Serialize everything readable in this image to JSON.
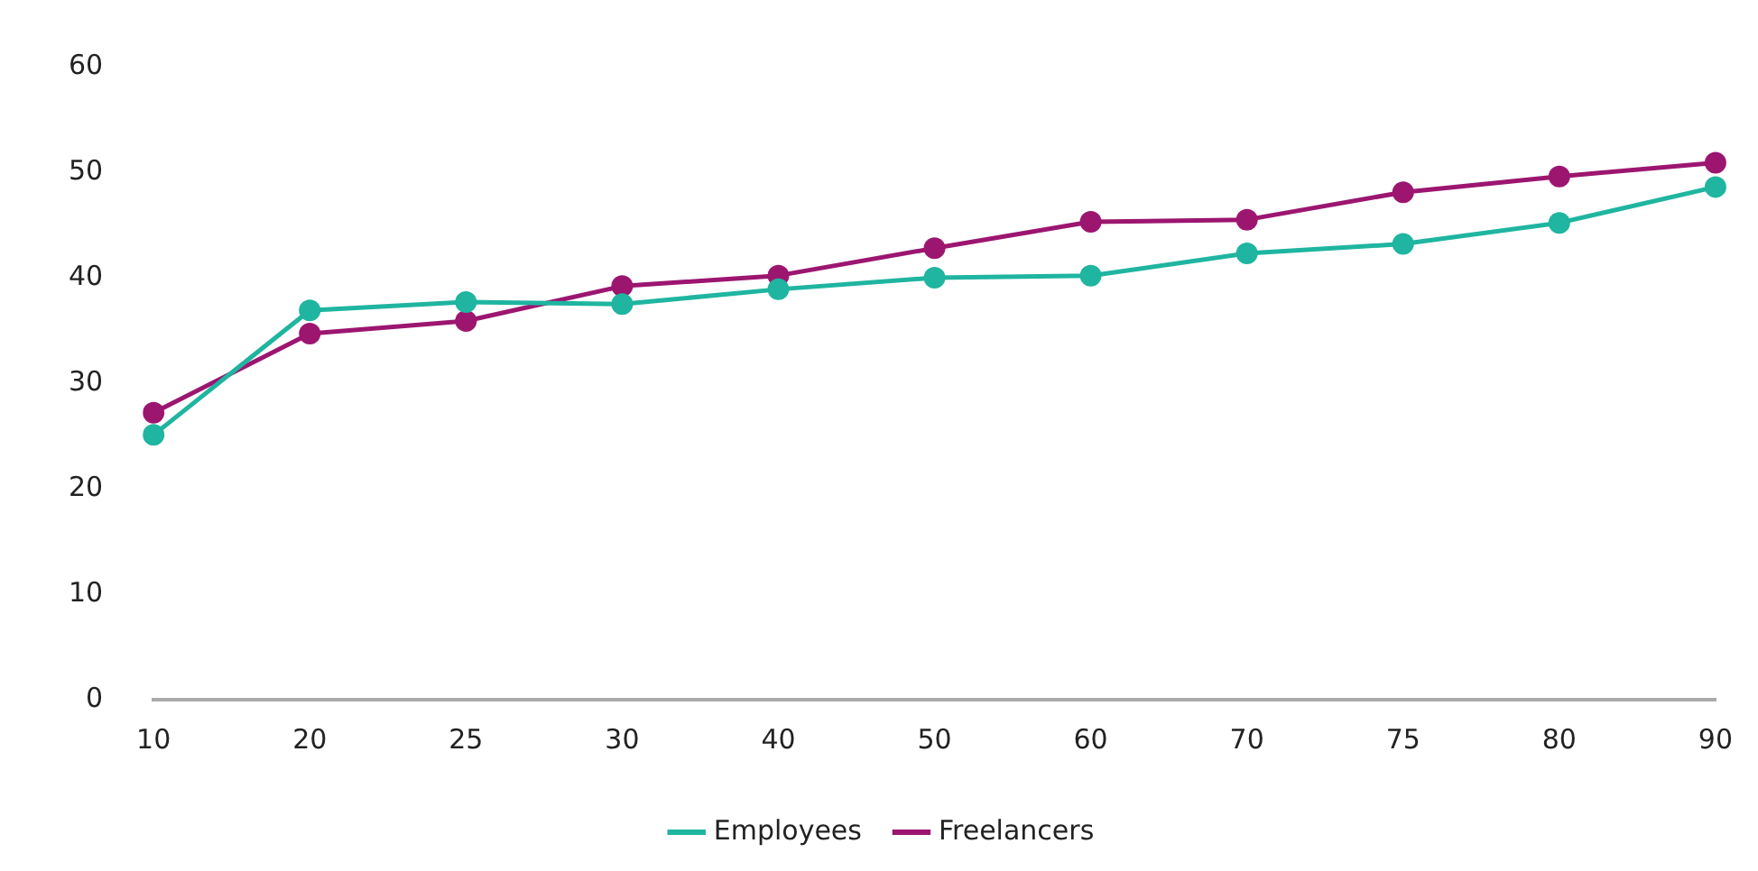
{
  "chart_data": {
    "type": "line",
    "categories": [
      "10",
      "20",
      "25",
      "30",
      "40",
      "50",
      "60",
      "70",
      "75",
      "80",
      "90"
    ],
    "series": [
      {
        "name": "Employees",
        "color": "#1fb5a0",
        "values": [
          25.1,
          36.9,
          37.7,
          37.5,
          38.9,
          40.0,
          40.2,
          42.3,
          43.2,
          45.2,
          48.6
        ]
      },
      {
        "name": "Freelancers",
        "color": "#9c1670",
        "values": [
          27.2,
          34.7,
          35.9,
          39.2,
          40.2,
          42.8,
          45.3,
          45.5,
          48.1,
          49.6,
          50.9
        ]
      }
    ],
    "ylim": [
      0,
      60
    ],
    "yticks": [
      0,
      10,
      20,
      30,
      40,
      50,
      60
    ],
    "grid": false,
    "legend": "bottom",
    "marker": "circle",
    "line_style": "solid"
  }
}
